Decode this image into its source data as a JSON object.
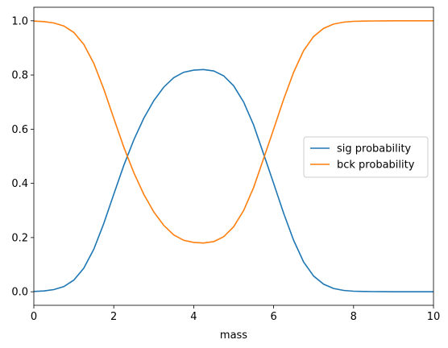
{
  "chart_data": {
    "type": "line",
    "title": "",
    "xlabel": "mass",
    "ylabel": "",
    "xlim": [
      0,
      10
    ],
    "ylim": [
      -0.05,
      1.05
    ],
    "x_ticks": [
      0,
      2,
      4,
      6,
      8,
      10
    ],
    "x_tick_labels": [
      "0",
      "2",
      "4",
      "6",
      "8",
      "10"
    ],
    "y_ticks": [
      0.0,
      0.2,
      0.4,
      0.6,
      0.8,
      1.0
    ],
    "y_tick_labels": [
      "0.0",
      "0.2",
      "0.4",
      "0.6",
      "0.8",
      "1.0"
    ],
    "grid": false,
    "legend_position": "center-right",
    "series": [
      {
        "name": "sig probability",
        "color": "#1f77b4",
        "x": [
          0,
          0.25,
          0.5,
          0.75,
          1.0,
          1.25,
          1.5,
          1.75,
          2.0,
          2.25,
          2.5,
          2.75,
          3.0,
          3.25,
          3.5,
          3.75,
          4.0,
          4.25,
          4.5,
          4.75,
          5.0,
          5.25,
          5.5,
          5.75,
          6.0,
          6.25,
          6.5,
          6.75,
          7.0,
          7.25,
          7.5,
          7.75,
          8.0,
          8.25,
          8.5,
          8.75,
          9.0,
          9.25,
          9.5,
          9.75,
          10.0
        ],
        "y": [
          0.001,
          0.003,
          0.008,
          0.019,
          0.043,
          0.087,
          0.157,
          0.252,
          0.36,
          0.466,
          0.56,
          0.64,
          0.705,
          0.755,
          0.79,
          0.81,
          0.818,
          0.82,
          0.815,
          0.797,
          0.76,
          0.7,
          0.615,
          0.508,
          0.4,
          0.29,
          0.19,
          0.11,
          0.058,
          0.028,
          0.012,
          0.005,
          0.002,
          0.001,
          0.0005,
          0.0002,
          0.0001,
          0.0,
          0.0,
          0.0,
          0.0
        ]
      },
      {
        "name": "bck probability",
        "color": "#ff7f0e",
        "x": [
          0,
          0.25,
          0.5,
          0.75,
          1.0,
          1.25,
          1.5,
          1.75,
          2.0,
          2.25,
          2.5,
          2.75,
          3.0,
          3.25,
          3.5,
          3.75,
          4.0,
          4.25,
          4.5,
          4.75,
          5.0,
          5.25,
          5.5,
          5.75,
          6.0,
          6.25,
          6.5,
          6.75,
          7.0,
          7.25,
          7.5,
          7.75,
          8.0,
          8.25,
          8.5,
          8.75,
          9.0,
          9.25,
          9.5,
          9.75,
          10.0
        ],
        "y": [
          0.999,
          0.997,
          0.992,
          0.981,
          0.957,
          0.913,
          0.843,
          0.748,
          0.64,
          0.534,
          0.44,
          0.36,
          0.295,
          0.245,
          0.21,
          0.19,
          0.182,
          0.18,
          0.185,
          0.203,
          0.24,
          0.3,
          0.385,
          0.492,
          0.6,
          0.71,
          0.81,
          0.89,
          0.942,
          0.972,
          0.988,
          0.995,
          0.998,
          0.999,
          0.9995,
          0.9998,
          0.9999,
          1.0,
          1.0,
          1.0,
          1.0
        ]
      }
    ]
  }
}
